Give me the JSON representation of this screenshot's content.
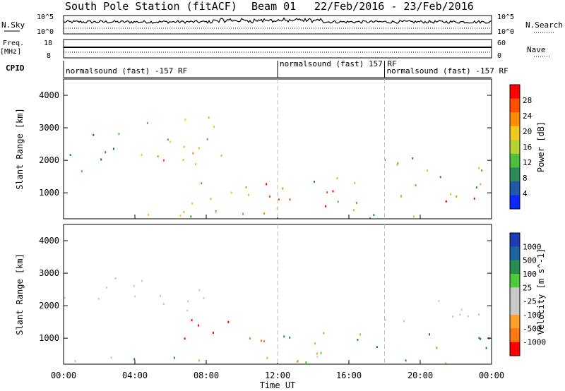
{
  "header": {
    "station": "South Pole Station (fitACF)",
    "beam": "Beam 01",
    "date_range": "22/Feb/2016 - 23/Feb/2016"
  },
  "strip_labels": {
    "nsky": "N.Sky",
    "nsky_ticks": [
      "10^5",
      "10^0"
    ],
    "nsearch": "N.Search",
    "nsearch_ticks": [
      "10^5",
      "10^0"
    ],
    "freq": "Freq.",
    "freq_unit": "[MHz]",
    "freq_ticks": [
      "18",
      "8"
    ],
    "nave": "Nave",
    "nave_ticks": [
      "60",
      "0"
    ],
    "cpid": "CPID"
  },
  "cpid_segments": [
    {
      "label": "normalsound (fast) -157 RF",
      "start_hour": 0
    },
    {
      "label": "normalsound (fast) 157 RF",
      "start_hour": 12
    },
    {
      "label": "normalsound (fast) -157 RF",
      "start_hour": 18
    }
  ],
  "colors": {
    "power_scale": [
      "#0a28ff",
      "#1e5aa8",
      "#2e8a5a",
      "#4cbf3c",
      "#b4d232",
      "#f0c81e",
      "#ff8c00",
      "#ff5000",
      "#ff0000"
    ],
    "velocity_scale": [
      "#1e3cb4",
      "#1e64a0",
      "#288c50",
      "#50c83c",
      "#c8c8c8",
      "#c8c8c8",
      "#ffa028",
      "#ff7814",
      "#ff0000"
    ]
  },
  "chart_data": [
    {
      "type": "heatmap",
      "name": "power",
      "xlabel": "Time UT",
      "ylabel": "Slant Range [km]",
      "x_range_hours": [
        0,
        24
      ],
      "ylim": [
        200,
        4500
      ],
      "x_ticks": [
        "00:00",
        "04:00",
        "08:00",
        "12:00",
        "16:00",
        "20:00",
        "00:00"
      ],
      "y_ticks": [
        1000,
        2000,
        3000,
        4000
      ],
      "colorbar": {
        "label": "Power [dB]",
        "ticks": [
          "28",
          "24",
          "20",
          "16",
          "12",
          "8",
          "4"
        ],
        "range": [
          0,
          32
        ]
      },
      "scatter_bands": [
        {
          "t": [
            0,
            1.5
          ],
          "r": [
            1500,
            2400
          ],
          "v": [
            9,
            16
          ]
        },
        {
          "t": [
            1.5,
            4.5
          ],
          "r": [
            2000,
            2900
          ],
          "v": [
            5,
            14
          ]
        },
        {
          "t": [
            4,
            7.5
          ],
          "r": [
            1700,
            2400
          ],
          "v": [
            18,
            30
          ]
        },
        {
          "t": [
            4,
            9
          ],
          "r": [
            2000,
            3400
          ],
          "v": [
            10,
            20
          ]
        },
        {
          "t": [
            6.5,
            10.5
          ],
          "r": [
            700,
            1400
          ],
          "v": [
            12,
            22
          ]
        },
        {
          "t": [
            10,
            12
          ],
          "r": [
            600,
            1600
          ],
          "v": [
            22,
            30
          ]
        },
        {
          "t": [
            12,
            18
          ],
          "r": [
            600,
            1200
          ],
          "v": [
            22,
            30
          ]
        },
        {
          "t": [
            14,
            18
          ],
          "r": [
            700,
            1500
          ],
          "v": [
            10,
            18
          ]
        },
        {
          "t": [
            17.5,
            24
          ],
          "r": [
            1500,
            2200
          ],
          "v": [
            8,
            16
          ]
        },
        {
          "t": [
            18,
            24
          ],
          "r": [
            600,
            1000
          ],
          "v": [
            22,
            30
          ]
        },
        {
          "t": [
            18,
            24
          ],
          "r": [
            900,
            1300
          ],
          "v": [
            10,
            16
          ]
        },
        {
          "t": [
            0,
            24
          ],
          "r": [
            250,
            550
          ],
          "v": [
            8,
            22
          ]
        }
      ]
    },
    {
      "type": "heatmap",
      "name": "velocity",
      "xlabel": "Time UT",
      "ylabel": "Slant Range [km]",
      "x_range_hours": [
        0,
        24
      ],
      "ylim": [
        200,
        4500
      ],
      "x_ticks": [
        "00:00",
        "04:00",
        "08:00",
        "12:00",
        "16:00",
        "20:00",
        "00:00"
      ],
      "y_ticks": [
        1000,
        2000,
        3000,
        4000
      ],
      "colorbar": {
        "label": "Velocity [m s^-1]",
        "ticks": [
          "1000",
          "500",
          "100",
          "25",
          "-25",
          "-100",
          "-500",
          "-1000"
        ]
      },
      "scatter_bands": [
        {
          "t": [
            0,
            2
          ],
          "r": [
            1600,
            2300
          ],
          "v": [
            0
          ]
        },
        {
          "t": [
            2,
            5
          ],
          "r": [
            2000,
            2900
          ],
          "v": [
            0
          ]
        },
        {
          "t": [
            4,
            8
          ],
          "r": [
            1700,
            2600
          ],
          "v": [
            0
          ]
        },
        {
          "t": [
            6.5,
            10.5
          ],
          "r": [
            800,
            1600
          ],
          "v": [
            -500,
            -1000
          ]
        },
        {
          "t": [
            10,
            12
          ],
          "r": [
            600,
            1400
          ],
          "v": [
            -100,
            -500
          ]
        },
        {
          "t": [
            12,
            18
          ],
          "r": [
            600,
            1300
          ],
          "v": [
            -100,
            100
          ]
        },
        {
          "t": [
            17.5,
            24
          ],
          "r": [
            1500,
            2200
          ],
          "v": [
            0
          ]
        },
        {
          "t": [
            18,
            24
          ],
          "r": [
            600,
            1200
          ],
          "v": [
            -500,
            500
          ]
        },
        {
          "t": [
            0,
            24
          ],
          "r": [
            250,
            600
          ],
          "v": [
            -100,
            100
          ]
        }
      ]
    }
  ]
}
